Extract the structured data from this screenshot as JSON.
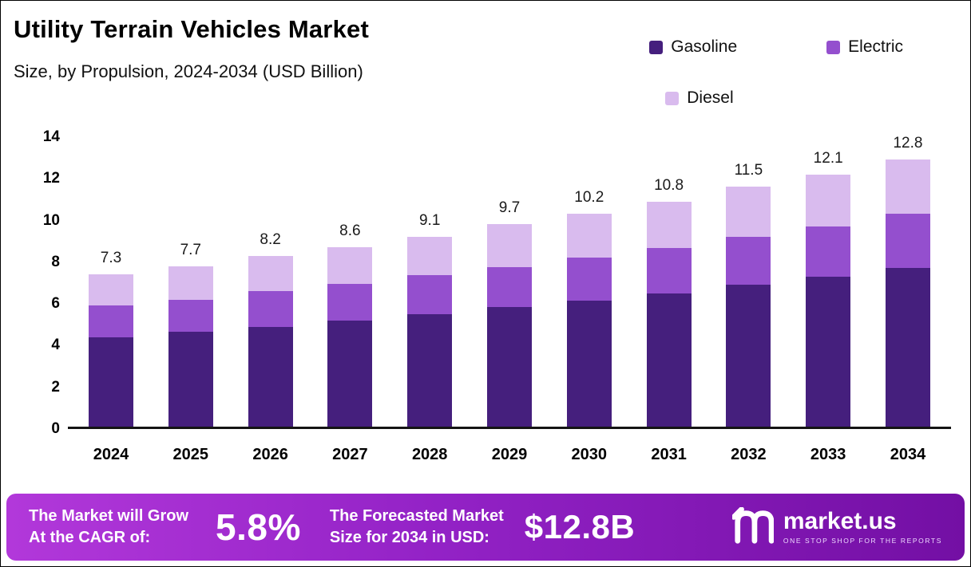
{
  "chart_data": {
    "type": "bar",
    "stacked": true,
    "title": "Utility Terrain Vehicles Market",
    "subtitle": "Size, by Propulsion, 2024-2034 (USD Billion)",
    "unit": "USD Billion",
    "categories": [
      "2024",
      "2025",
      "2026",
      "2027",
      "2028",
      "2029",
      "2030",
      "2031",
      "2032",
      "2033",
      "2034"
    ],
    "series": [
      {
        "name": "Gasoline",
        "color": "#451F7D",
        "values": [
          4.3,
          4.55,
          4.8,
          5.1,
          5.4,
          5.75,
          6.05,
          6.4,
          6.8,
          7.2,
          7.6
        ]
      },
      {
        "name": "Electric",
        "color": "#944FCE",
        "values": [
          1.5,
          1.55,
          1.7,
          1.75,
          1.85,
          1.9,
          2.05,
          2.15,
          2.3,
          2.4,
          2.6
        ]
      },
      {
        "name": "Diesel",
        "color": "#D9BBEE",
        "values": [
          1.5,
          1.6,
          1.7,
          1.75,
          1.85,
          2.05,
          2.1,
          2.25,
          2.4,
          2.5,
          2.6
        ]
      }
    ],
    "totals": [
      7.3,
      7.7,
      8.2,
      8.6,
      9.1,
      9.7,
      10.2,
      10.8,
      11.5,
      12.1,
      12.8
    ],
    "ylim": [
      0,
      14
    ],
    "yticks": [
      0,
      2,
      4,
      6,
      8,
      10,
      12,
      14
    ],
    "xlabel": "",
    "ylabel": "",
    "legend_position": "top-right",
    "grid": false
  },
  "banner": {
    "cagr_line1": "The Market will Grow",
    "cagr_line2": "At the CAGR of:",
    "cagr_value": "5.8%",
    "forecast_line1": "The Forecasted Market",
    "forecast_line2": "Size for 2034 in USD:",
    "forecast_value": "$12.8B",
    "brand": "market.us",
    "tagline": "ONE STOP SHOP FOR THE REPORTS"
  },
  "colors": {
    "banner_gradient": [
      "#B238DA",
      "#9322C6",
      "#730FA4"
    ],
    "axis": "#141414",
    "background": "#FFFFFF"
  }
}
